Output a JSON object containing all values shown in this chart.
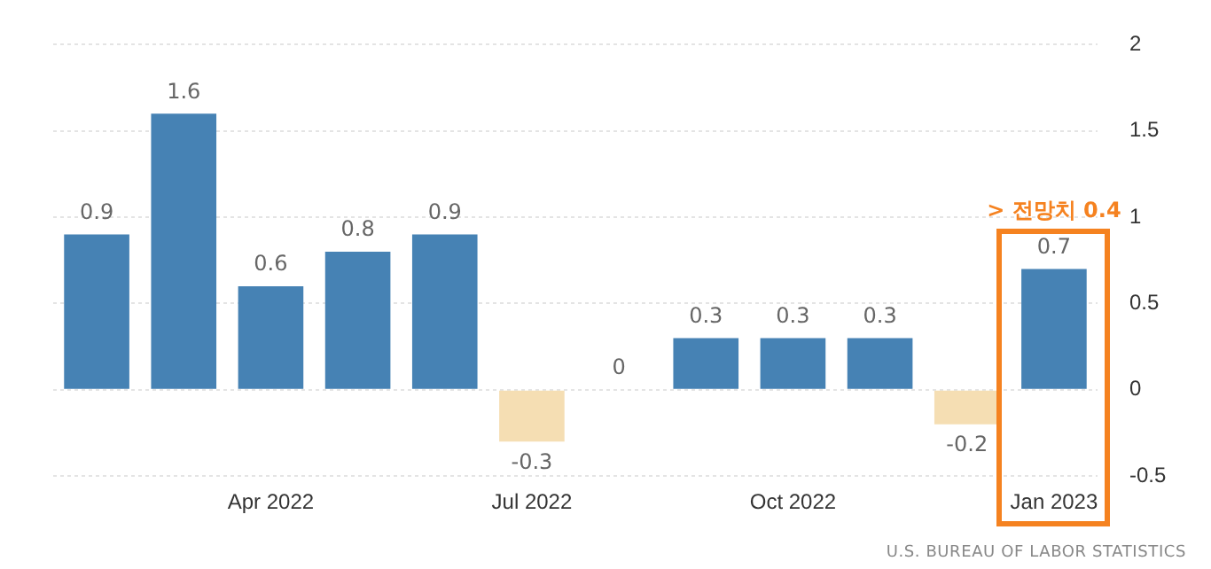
{
  "chart_data": {
    "type": "bar",
    "categories": [
      null,
      null,
      "Apr 2022",
      null,
      null,
      "Jul 2022",
      null,
      null,
      "Oct 2022",
      null,
      null,
      "Jan 2023"
    ],
    "values": [
      0.9,
      1.6,
      0.6,
      0.8,
      0.9,
      -0.3,
      0,
      0.3,
      0.3,
      0.3,
      -0.2,
      0.7
    ],
    "colors": [
      "#4682b4",
      "#4682b4",
      "#4682b4",
      "#4682b4",
      "#4682b4",
      "#f5deb3",
      "#4682b4",
      "#4682b4",
      "#4682b4",
      "#4682b4",
      "#f5deb3",
      "#4682b4"
    ],
    "ylim": [
      -0.5,
      2
    ],
    "yticks": [
      -0.5,
      0,
      0.5,
      1,
      1.5,
      2
    ],
    "grid": "y",
    "legend": false,
    "data_labels": true,
    "annotations": [
      "> 전망치 0.4",
      "U.S. BUREAU OF LABOR STATISTICS"
    ]
  }
}
